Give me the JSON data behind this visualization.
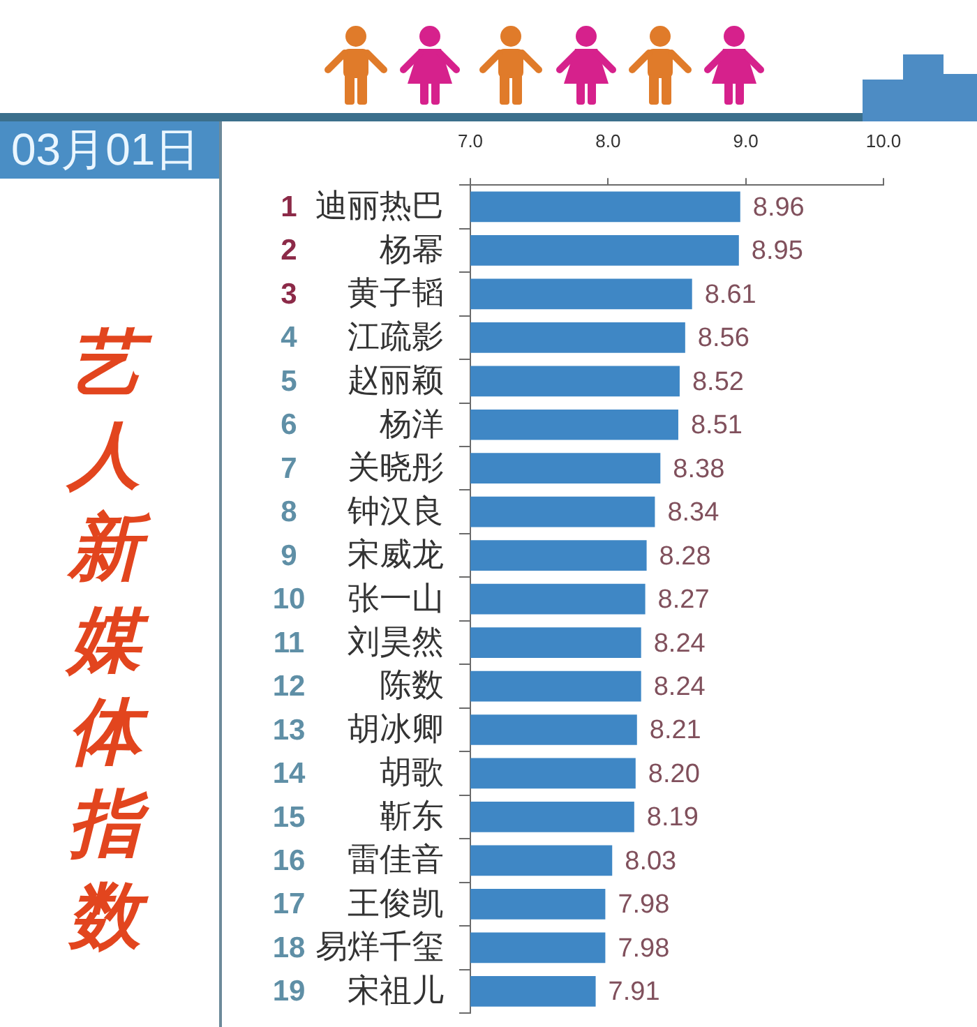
{
  "chart_data": {
    "type": "bar",
    "orientation": "horizontal",
    "title": "艺人新媒体指数",
    "subtitle": "03月01日",
    "categories": [
      "1 迪丽热巴",
      "2 杨幂",
      "3 黄子韬",
      "4 江疏影",
      "5 赵丽颖",
      "6 杨洋",
      "7 关晓彤",
      "8 钟汉良",
      "9 宋威龙",
      "10 张一山",
      "11 刘昊然",
      "12 陈数",
      "13 胡冰卿",
      "14 胡歌",
      "15 靳东",
      "16 雷佳音",
      "17 王俊凯",
      "18 易烊千玺",
      "19 宋祖儿"
    ],
    "values": [
      8.96,
      8.95,
      8.61,
      8.56,
      8.52,
      8.51,
      8.38,
      8.34,
      8.28,
      8.27,
      8.24,
      8.24,
      8.21,
      8.2,
      8.19,
      8.03,
      7.98,
      7.98,
      7.91
    ],
    "value_labels": [
      "8.96",
      "8.95",
      "8.61",
      "8.56",
      "8.52",
      "8.51",
      "8.38",
      "8.34",
      "8.28",
      "8.27",
      "8.24",
      "8.24",
      "8.21",
      "8.20",
      "8.19",
      "8.03",
      "7.98",
      "7.98",
      "7.91"
    ],
    "color": "#3f87c5",
    "xlim": [
      7,
      10
    ],
    "xticks": [
      {
        "value": 7,
        "label": "7.0"
      },
      {
        "value": 8,
        "label": "8.0"
      },
      {
        "value": 9,
        "label": "9.0"
      },
      {
        "value": 10,
        "label": "10.0"
      }
    ],
    "grid": false
  }
}
